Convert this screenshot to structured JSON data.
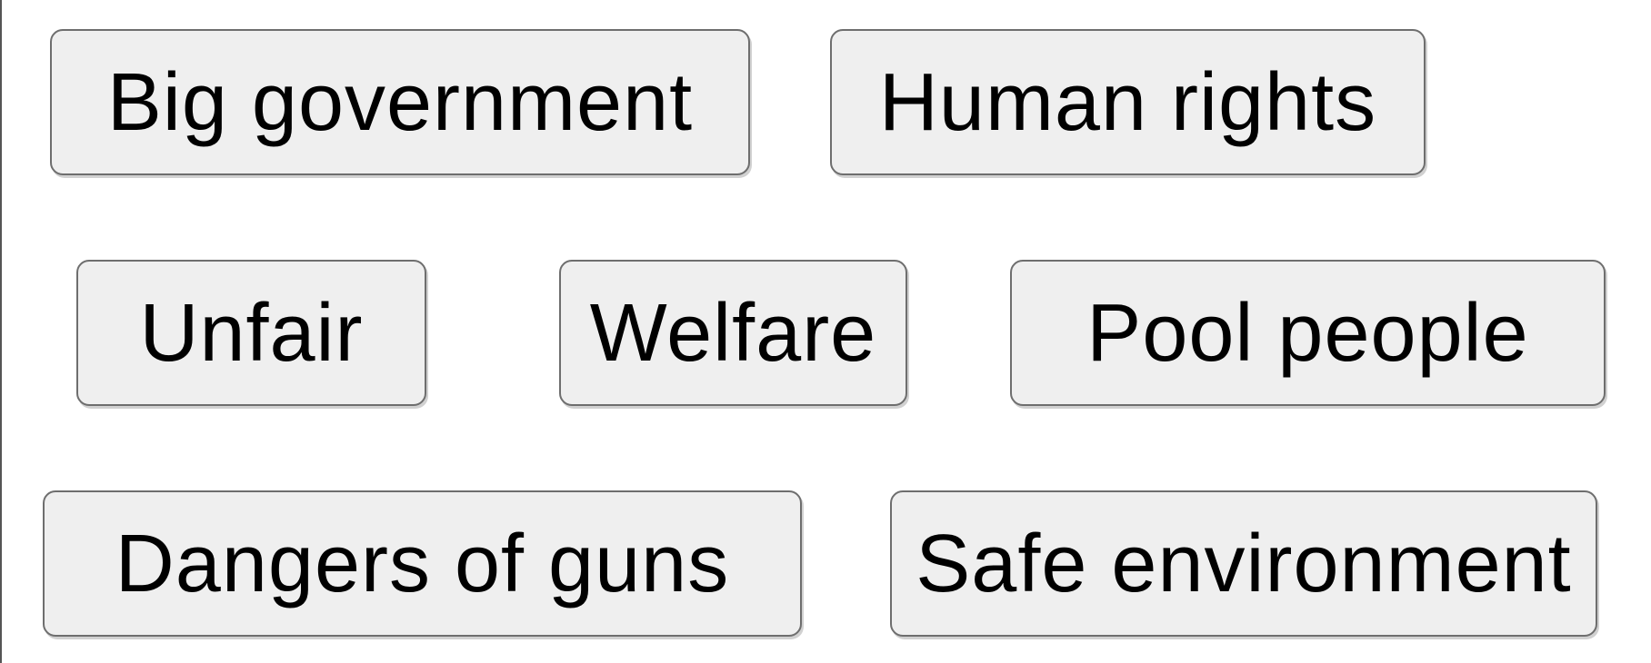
{
  "tags": [
    {
      "label": "Big government"
    },
    {
      "label": "Human rights"
    },
    {
      "label": "Unfair"
    },
    {
      "label": "Welfare"
    },
    {
      "label": "Pool people"
    },
    {
      "label": "Dangers of guns"
    },
    {
      "label": "Safe environment"
    }
  ]
}
